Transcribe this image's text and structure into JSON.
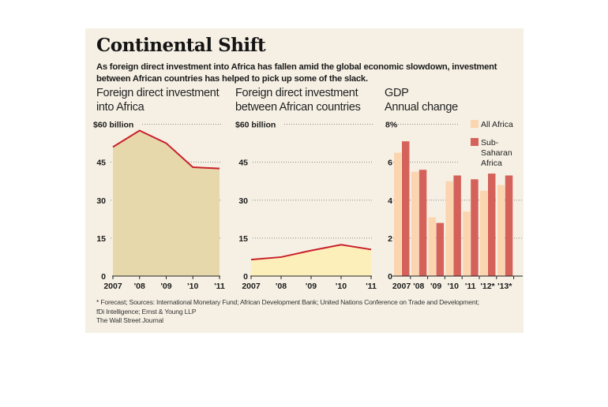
{
  "header": {
    "title": "Continental Shift",
    "subtitle": "As foreign direct investment into Africa has fallen amid the global economic slowdown, investment between African countries has helped to pick up some of the slack."
  },
  "footer": {
    "sources_line1": "* Forecast; Sources: International Monetary Fund; African Development Bank; United Nations Conference on Trade and Development;",
    "sources_line2": "fDi Intelligence; Ernst & Young LLP",
    "credit": "The Wall Street Journal"
  },
  "colors": {
    "panel_bg": "#f6f0e4",
    "area1_fill": "#e7d8ac",
    "area2_fill": "#fdefb9",
    "line": "#c8202a",
    "bar_all_africa": "#fbd5b0",
    "bar_sub_saharan": "#d5625a",
    "grid": "#888888"
  },
  "chart_data": [
    {
      "type": "area",
      "title_line1": "Foreign direct investment",
      "title_line2": "into Africa",
      "unit_label": "$60 billion",
      "categories": [
        "2007",
        "'08",
        "'09",
        "'10",
        "'11"
      ],
      "values": [
        51,
        57.5,
        52.5,
        43,
        42.5
      ],
      "yticks": [
        "0",
        "15",
        "30",
        "45"
      ],
      "ylim": [
        0,
        60
      ],
      "grid": true
    },
    {
      "type": "area",
      "title_line1": "Foreign direct investment",
      "title_line2": "between African countries",
      "unit_label": "$60 billion",
      "categories": [
        "2007",
        "'08",
        "'09",
        "'10",
        "'11"
      ],
      "values": [
        6.5,
        7.5,
        10.1,
        12.4,
        10.5
      ],
      "yticks": [
        "0",
        "15",
        "30",
        "45"
      ],
      "ylim": [
        0,
        60
      ],
      "grid": true
    },
    {
      "type": "bar",
      "title_line1": "GDP",
      "title_line2": "Annual change",
      "unit_label": "8%",
      "categories": [
        "2007",
        "'08",
        "'09",
        "'10",
        "'11",
        "'12*",
        "'13*"
      ],
      "series": [
        {
          "name": "All Africa",
          "values": [
            6.5,
            5.5,
            3.1,
            5.0,
            3.4,
            4.5,
            4.8
          ]
        },
        {
          "name": "Sub-Saharan Africa",
          "values": [
            7.1,
            5.6,
            2.8,
            5.3,
            5.1,
            5.4,
            5.3
          ]
        }
      ],
      "legend": [
        {
          "lines": [
            "All Africa"
          ]
        },
        {
          "lines": [
            "Sub-",
            "Saharan",
            "Africa"
          ]
        }
      ],
      "legend_position": "top-right",
      "yticks": [
        "0",
        "2",
        "4",
        "6"
      ],
      "ylim": [
        0,
        8
      ],
      "grid": true
    }
  ]
}
